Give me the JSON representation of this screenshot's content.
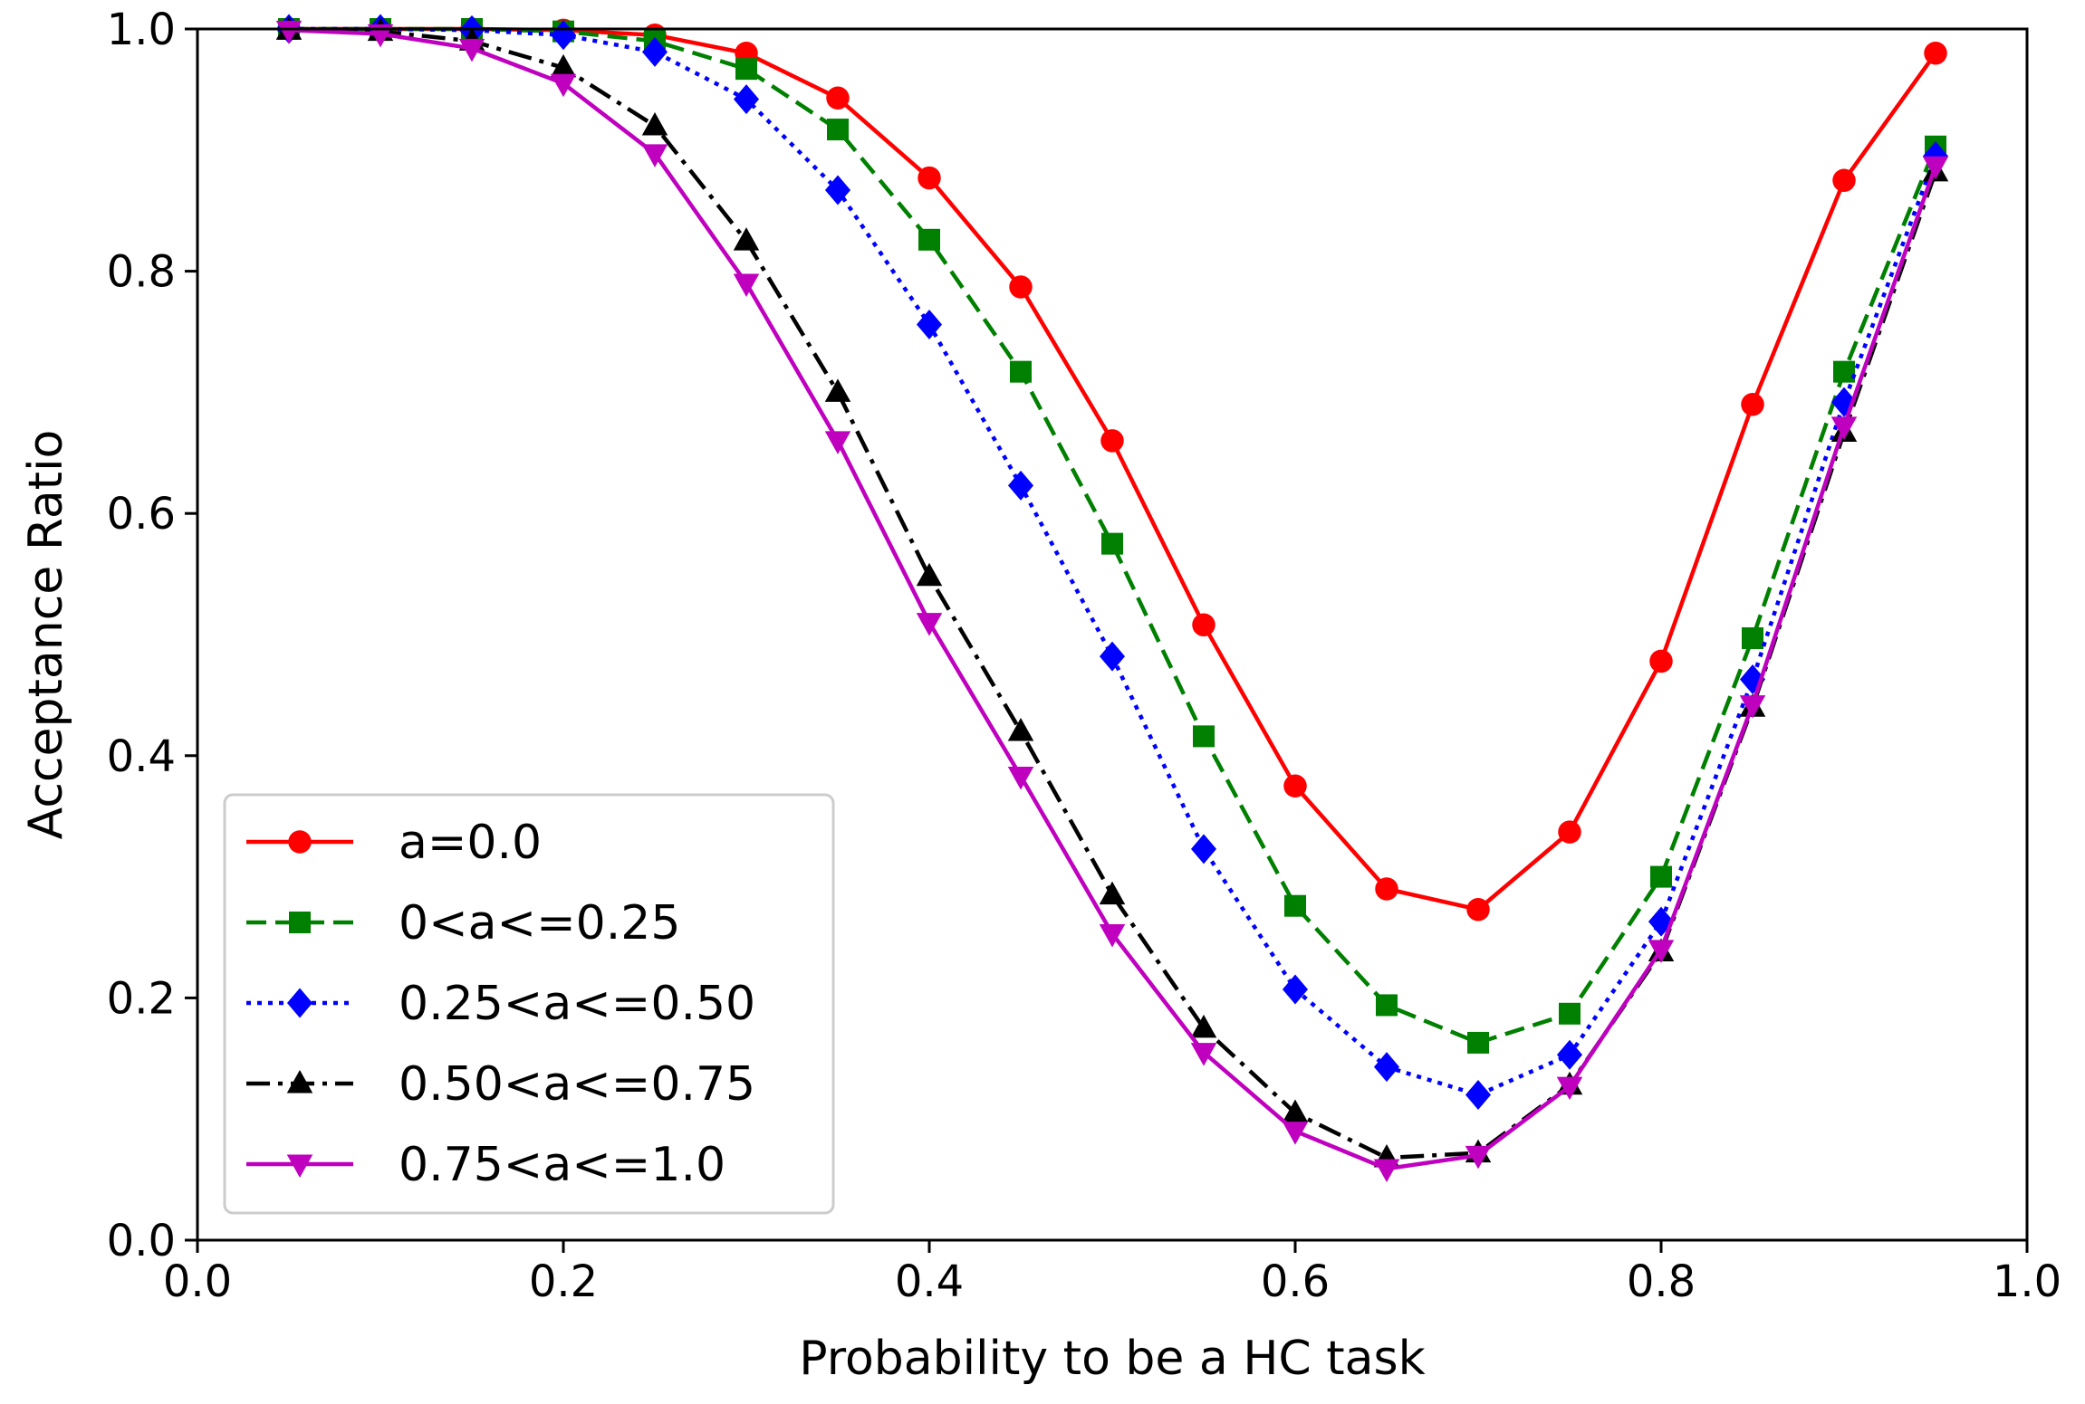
{
  "chart_data": {
    "type": "line",
    "title": "",
    "xlabel": "Probability to be a HC task",
    "ylabel": "Acceptance Ratio",
    "xlim": [
      0.0,
      1.0
    ],
    "ylim": [
      0.0,
      1.0
    ],
    "xticks": [
      0.0,
      0.2,
      0.4,
      0.6,
      0.8,
      1.0
    ],
    "yticks": [
      0.0,
      0.2,
      0.4,
      0.6,
      0.8,
      1.0
    ],
    "xtick_labels": [
      "0.0",
      "0.2",
      "0.4",
      "0.6",
      "0.8",
      "1.0"
    ],
    "ytick_labels": [
      "0.0",
      "0.2",
      "0.4",
      "0.6",
      "0.8",
      "1.0"
    ],
    "grid": false,
    "legend_position": "lower-left",
    "x": [
      0.05,
      0.1,
      0.15,
      0.2,
      0.25,
      0.3,
      0.35,
      0.4,
      0.45,
      0.5,
      0.55,
      0.6,
      0.65,
      0.7,
      0.75,
      0.8,
      0.85,
      0.9,
      0.95
    ],
    "series": [
      {
        "name": "a=0.0",
        "color": "#ff0000",
        "line_style": "solid",
        "marker": "circle",
        "values": [
          1.0,
          1.0,
          1.0,
          0.999,
          0.995,
          0.98,
          0.943,
          0.877,
          0.787,
          0.66,
          0.508,
          0.375,
          0.29,
          0.273,
          0.337,
          0.478,
          0.69,
          0.875,
          0.98
        ]
      },
      {
        "name": "0<a<=0.25",
        "color": "#008000",
        "line_style": "dashed",
        "marker": "square",
        "values": [
          1.0,
          1.0,
          1.0,
          0.998,
          0.99,
          0.967,
          0.917,
          0.826,
          0.717,
          0.575,
          0.416,
          0.276,
          0.194,
          0.163,
          0.187,
          0.3,
          0.497,
          0.717,
          0.903
        ]
      },
      {
        "name": "0.25<a<=0.50",
        "color": "#0000ff",
        "line_style": "dotted",
        "marker": "diamond",
        "values": [
          1.0,
          1.0,
          0.999,
          0.995,
          0.981,
          0.942,
          0.867,
          0.756,
          0.623,
          0.482,
          0.323,
          0.207,
          0.143,
          0.12,
          0.153,
          0.263,
          0.463,
          0.692,
          0.895
        ]
      },
      {
        "name": "0.50<a<=0.75",
        "color": "#000000",
        "line_style": "dashdot",
        "marker": "triangle-up",
        "values": [
          0.999,
          0.998,
          0.99,
          0.968,
          0.92,
          0.825,
          0.7,
          0.548,
          0.42,
          0.285,
          0.175,
          0.105,
          0.068,
          0.072,
          0.128,
          0.238,
          0.44,
          0.667,
          0.882
        ]
      },
      {
        "name": "0.75<a<=1.0",
        "color": "#bf00bf",
        "line_style": "solid",
        "marker": "triangle-down",
        "values": [
          0.999,
          0.996,
          0.984,
          0.955,
          0.897,
          0.79,
          0.66,
          0.51,
          0.383,
          0.253,
          0.155,
          0.09,
          0.059,
          0.07,
          0.127,
          0.24,
          0.442,
          0.672,
          0.887
        ]
      }
    ]
  }
}
